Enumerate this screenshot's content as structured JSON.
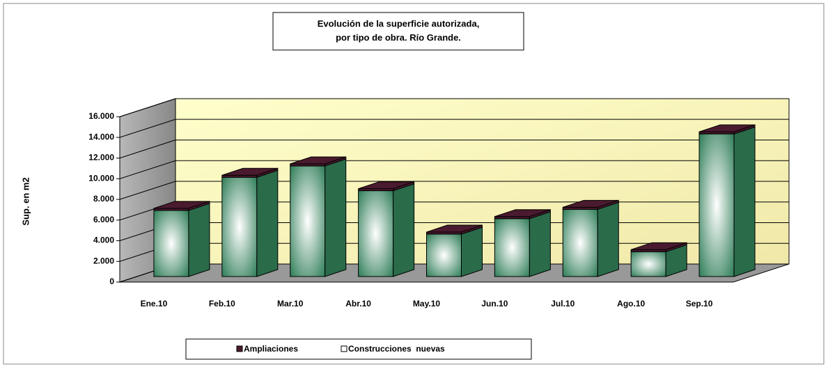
{
  "chart_data": {
    "type": "bar3d_stacked",
    "title": [
      "Evolución de la superficie autorizada,",
      "por tipo de obra. Río Grande."
    ],
    "y_label": "Sup. en m2",
    "categories": [
      "Ene.10",
      "Feb.10",
      "Mar.10",
      "Abr.10",
      "May.10",
      "Jun.10",
      "Jul.10",
      "Ago.10",
      "Sep.10"
    ],
    "series": [
      {
        "name": "Construcciones  nuevas",
        "color": "#2e7d57",
        "values": [
          6400,
          9600,
          10700,
          8300,
          4100,
          5600,
          6500,
          2400,
          13800
        ]
      },
      {
        "name": "Ampliaciones",
        "color": "#4a1a2e",
        "values": [
          200,
          200,
          200,
          200,
          200,
          200,
          200,
          200,
          200
        ]
      }
    ],
    "legend_order": [
      1,
      0
    ],
    "ylim": [
      0,
      16000
    ],
    "yticks": [
      0,
      {
        "value": 2000,
        "label": "2.000"
      },
      {
        "value": 4000,
        "label": "4.000"
      },
      {
        "value": 6000,
        "label": "6.000"
      },
      {
        "value": 8000,
        "label": "8.000"
      },
      {
        "value": 10000,
        "label": "10.000"
      },
      {
        "value": 12000,
        "label": "12.000"
      },
      {
        "value": 14000,
        "label": "14.000"
      },
      {
        "value": 16000,
        "label": "16.000"
      }
    ],
    "grid": true
  }
}
